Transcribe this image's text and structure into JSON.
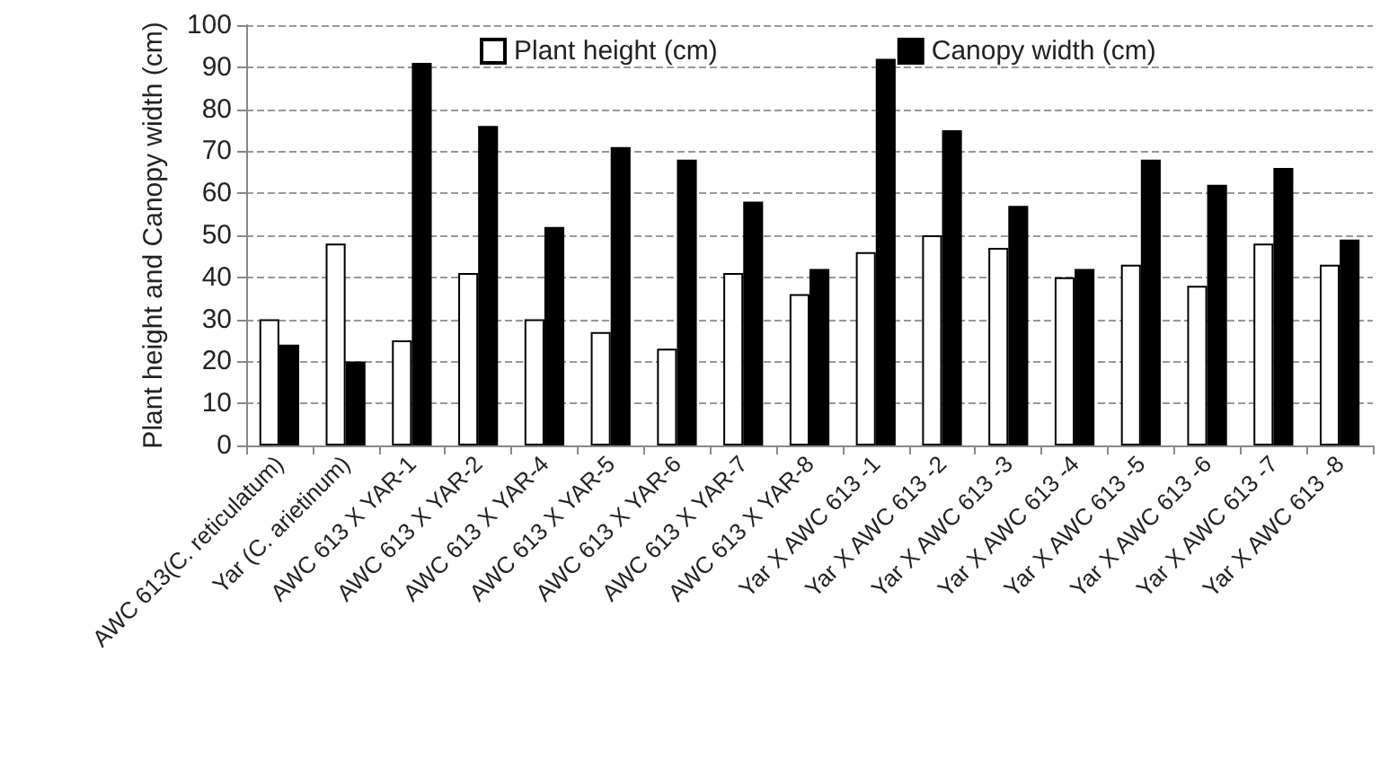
{
  "chart_data": {
    "type": "bar",
    "ylabel": "Plant height and Canopy width (cm)",
    "categories": [
      "AWC 613(C. reticulatum)",
      "Yar (C. arietinum)",
      "AWC 613 X YAR-1",
      "AWC 613 X YAR-2",
      "AWC 613 X YAR-4",
      "AWC 613 X YAR-5",
      "AWC 613 X YAR-6",
      "AWC 613 X YAR-7",
      "AWC 613 X YAR-8",
      "Yar X AWC 613 -1",
      "Yar X AWC 613 -2",
      "Yar X AWC 613 -3",
      "Yar X AWC 613 -4",
      "Yar X AWC 613 -5",
      "Yar X AWC 613 -6",
      "Yar X AWC 613 -7",
      "Yar X AWC 613 -8"
    ],
    "series": [
      {
        "name": "Plant height (cm)",
        "color": "#ffffff",
        "values": [
          30,
          48,
          25,
          41,
          30,
          27,
          23,
          41,
          36,
          46,
          50,
          47,
          40,
          43,
          38,
          48,
          43
        ]
      },
      {
        "name": "Canopy width (cm)",
        "color": "#000000",
        "values": [
          24,
          20,
          91,
          76,
          52,
          71,
          68,
          58,
          42,
          92,
          75,
          57,
          42,
          68,
          62,
          66,
          49
        ]
      }
    ],
    "ylim": [
      0,
      100
    ],
    "yticks": [
      0,
      10,
      20,
      30,
      40,
      50,
      60,
      70,
      80,
      90,
      100
    ],
    "grid": "y",
    "legend": "top"
  }
}
